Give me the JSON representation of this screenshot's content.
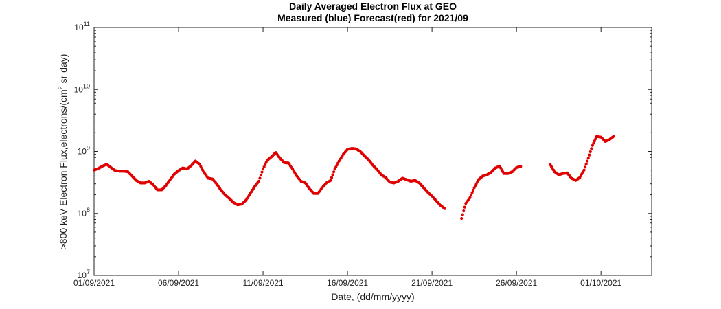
{
  "chart_data": {
    "type": "scatter",
    "title": "Daily Averaged Electron Flux at GEO",
    "subtitle": "Measured (blue) Forecast(red) for 2021/09",
    "xlabel": "Date, (dd/mm/yyyy)",
    "ylabel": ">800 keV Electron Flux,electrons/(cm² sr day)",
    "ylabel_parts": [
      ">800 keV Electron Flux,electrons/(cm",
      "2",
      " sr day)"
    ],
    "x_ticks": [
      "01/09/2021",
      "06/09/2021",
      "11/09/2021",
      "16/09/2021",
      "21/09/2021",
      "26/09/2021",
      "01/10/2021"
    ],
    "y_ticks": [
      {
        "base": "10",
        "exp": "7"
      },
      {
        "base": "10",
        "exp": "8"
      },
      {
        "base": "10",
        "exp": "9"
      },
      {
        "base": "10",
        "exp": "10"
      },
      {
        "base": "10",
        "exp": "11"
      }
    ],
    "xlim": [
      "01/09/2021",
      "04/10/2021"
    ],
    "ylim": [
      10000000.0,
      100000000000.0
    ],
    "yscale": "log",
    "grid": false,
    "marker_color": "#e00000",
    "series": [
      {
        "name": "Forecast",
        "color": "#e00000",
        "points": [
          [
            "01/09/2021 00:00",
            500000000.0
          ],
          [
            "01/09/2021 06:00",
            530000000.0
          ],
          [
            "01/09/2021 12:00",
            580000000.0
          ],
          [
            "01/09/2021 18:00",
            620000000.0
          ],
          [
            "02/09/2021 00:00",
            550000000.0
          ],
          [
            "02/09/2021 06:00",
            490000000.0
          ],
          [
            "02/09/2021 12:00",
            480000000.0
          ],
          [
            "02/09/2021 18:00",
            480000000.0
          ],
          [
            "03/09/2021 00:00",
            470000000.0
          ],
          [
            "03/09/2021 06:00",
            400000000.0
          ],
          [
            "03/09/2021 12:00",
            340000000.0
          ],
          [
            "03/09/2021 18:00",
            310000000.0
          ],
          [
            "04/09/2021 00:00",
            310000000.0
          ],
          [
            "04/09/2021 06:00",
            330000000.0
          ],
          [
            "04/09/2021 12:00",
            290000000.0
          ],
          [
            "04/09/2021 18:00",
            240000000.0
          ],
          [
            "05/09/2021 00:00",
            240000000.0
          ],
          [
            "05/09/2021 06:00",
            280000000.0
          ],
          [
            "05/09/2021 12:00",
            350000000.0
          ],
          [
            "05/09/2021 18:00",
            430000000.0
          ],
          [
            "06/09/2021 00:00",
            490000000.0
          ],
          [
            "06/09/2021 06:00",
            540000000.0
          ],
          [
            "06/09/2021 12:00",
            520000000.0
          ],
          [
            "06/09/2021 18:00",
            590000000.0
          ],
          [
            "07/09/2021 00:00",
            700000000.0
          ],
          [
            "07/09/2021 06:00",
            620000000.0
          ],
          [
            "07/09/2021 12:00",
            460000000.0
          ],
          [
            "07/09/2021 18:00",
            370000000.0
          ],
          [
            "08/09/2021 00:00",
            360000000.0
          ],
          [
            "08/09/2021 06:00",
            300000000.0
          ],
          [
            "08/09/2021 12:00",
            240000000.0
          ],
          [
            "08/09/2021 18:00",
            200000000.0
          ],
          [
            "09/09/2021 00:00",
            175000000.0
          ],
          [
            "09/09/2021 06:00",
            150000000.0
          ],
          [
            "09/09/2021 12:00",
            138000000.0
          ],
          [
            "09/09/2021 18:00",
            142000000.0
          ],
          [
            "10/09/2021 00:00",
            165000000.0
          ],
          [
            "10/09/2021 06:00",
            210000000.0
          ],
          [
            "10/09/2021 12:00",
            270000000.0
          ],
          [
            "10/09/2021 18:00",
            330000000.0
          ],
          [
            "11/09/2021 00:00",
            520000000.0
          ],
          [
            "11/09/2021 06:00",
            720000000.0
          ],
          [
            "11/09/2021 12:00",
            820000000.0
          ],
          [
            "11/09/2021 18:00",
            960000000.0
          ],
          [
            "12/09/2021 00:00",
            780000000.0
          ],
          [
            "12/09/2021 06:00",
            660000000.0
          ],
          [
            "12/09/2021 12:00",
            650000000.0
          ],
          [
            "12/09/2021 18:00",
            520000000.0
          ],
          [
            "13/09/2021 00:00",
            400000000.0
          ],
          [
            "13/09/2021 06:00",
            330000000.0
          ],
          [
            "13/09/2021 12:00",
            310000000.0
          ],
          [
            "13/09/2021 18:00",
            250000000.0
          ],
          [
            "14/09/2021 00:00",
            210000000.0
          ],
          [
            "14/09/2021 06:00",
            210000000.0
          ],
          [
            "14/09/2021 12:00",
            260000000.0
          ],
          [
            "14/09/2021 18:00",
            310000000.0
          ],
          [
            "15/09/2021 00:00",
            340000000.0
          ],
          [
            "15/09/2021 06:00",
            520000000.0
          ],
          [
            "15/09/2021 12:00",
            700000000.0
          ],
          [
            "15/09/2021 18:00",
            900000000.0
          ],
          [
            "16/09/2021 00:00",
            1080000000.0
          ],
          [
            "16/09/2021 06:00",
            1120000000.0
          ],
          [
            "16/09/2021 12:00",
            1100000000.0
          ],
          [
            "16/09/2021 18:00",
            1000000000.0
          ],
          [
            "17/09/2021 00:00",
            850000000.0
          ],
          [
            "17/09/2021 06:00",
            730000000.0
          ],
          [
            "17/09/2021 12:00",
            600000000.0
          ],
          [
            "17/09/2021 18:00",
            510000000.0
          ],
          [
            "18/09/2021 00:00",
            420000000.0
          ],
          [
            "18/09/2021 06:00",
            380000000.0
          ],
          [
            "18/09/2021 12:00",
            320000000.0
          ],
          [
            "18/09/2021 18:00",
            310000000.0
          ],
          [
            "19/09/2021 00:00",
            330000000.0
          ],
          [
            "19/09/2021 06:00",
            370000000.0
          ],
          [
            "19/09/2021 12:00",
            350000000.0
          ],
          [
            "19/09/2021 18:00",
            330000000.0
          ],
          [
            "20/09/2021 00:00",
            340000000.0
          ],
          [
            "20/09/2021 06:00",
            310000000.0
          ],
          [
            "20/09/2021 12:00",
            260000000.0
          ],
          [
            "20/09/2021 18:00",
            220000000.0
          ],
          [
            "21/09/2021 00:00",
            190000000.0
          ],
          [
            "21/09/2021 06:00",
            160000000.0
          ],
          [
            "21/09/2021 12:00",
            135000000.0
          ],
          [
            "21/09/2021 18:00",
            120000000.0
          ],
          [
            "22/09/2021 18:00",
            83000000.0
          ],
          [
            "23/09/2021 00:00",
            145000000.0
          ],
          [
            "23/09/2021 06:00",
            180000000.0
          ],
          [
            "23/09/2021 12:00",
            260000000.0
          ],
          [
            "23/09/2021 18:00",
            350000000.0
          ],
          [
            "24/09/2021 00:00",
            400000000.0
          ],
          [
            "24/09/2021 06:00",
            420000000.0
          ],
          [
            "24/09/2021 12:00",
            460000000.0
          ],
          [
            "24/09/2021 18:00",
            540000000.0
          ],
          [
            "25/09/2021 00:00",
            580000000.0
          ],
          [
            "25/09/2021 06:00",
            440000000.0
          ],
          [
            "25/09/2021 12:00",
            440000000.0
          ],
          [
            "25/09/2021 18:00",
            470000000.0
          ],
          [
            "26/09/2021 00:00",
            550000000.0
          ],
          [
            "26/09/2021 06:00",
            570000000.0
          ],
          [
            "28/09/2021 00:00",
            610000000.0
          ],
          [
            "28/09/2021 06:00",
            470000000.0
          ],
          [
            "28/09/2021 12:00",
            420000000.0
          ],
          [
            "28/09/2021 18:00",
            440000000.0
          ],
          [
            "29/09/2021 00:00",
            450000000.0
          ],
          [
            "29/09/2021 06:00",
            370000000.0
          ],
          [
            "29/09/2021 12:00",
            340000000.0
          ],
          [
            "29/09/2021 18:00",
            380000000.0
          ],
          [
            "30/09/2021 00:00",
            500000000.0
          ],
          [
            "30/09/2021 06:00",
            780000000.0
          ],
          [
            "30/09/2021 12:00",
            1250000000.0
          ],
          [
            "30/09/2021 18:00",
            1750000000.0
          ],
          [
            "01/10/2021 00:00",
            1700000000.0
          ],
          [
            "01/10/2021 06:00",
            1450000000.0
          ],
          [
            "01/10/2021 12:00",
            1550000000.0
          ],
          [
            "01/10/2021 18:00",
            1750000000.0
          ]
        ]
      }
    ]
  }
}
